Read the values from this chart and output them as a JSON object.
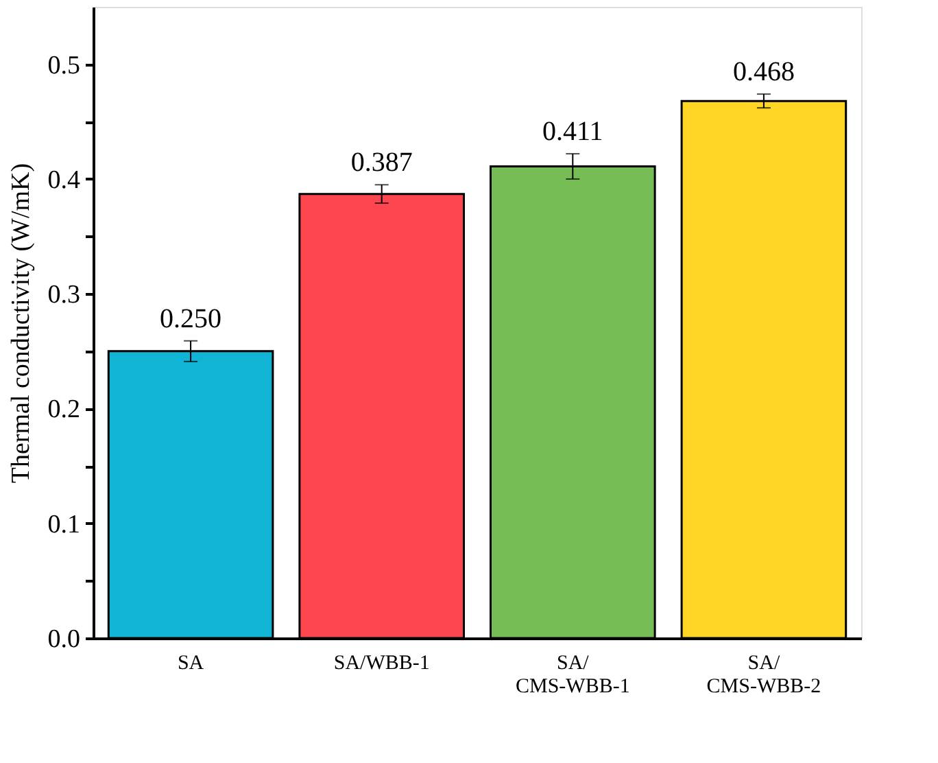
{
  "chart_data": {
    "type": "bar",
    "ylabel": "Thermal conductivity (W/mK)",
    "categories": [
      "SA",
      "SA/WBB-1",
      "SA/\nCMS-WBB-1",
      "SA/\nCMS-WBB-2"
    ],
    "values": [
      0.25,
      0.387,
      0.411,
      0.468
    ],
    "colors": [
      "#12b4d6",
      "#fd4650",
      "#76bd55",
      "#fed425"
    ],
    "errors": [
      0.009,
      0.008,
      0.011,
      0.006
    ],
    "value_labels": [
      "0.250",
      "0.387",
      "0.411",
      "0.468"
    ],
    "ylim": [
      0,
      0.55
    ],
    "yticks": [
      {
        "value": 0,
        "label": "0.0"
      },
      {
        "value": 0.05,
        "label": null
      },
      {
        "value": 0.1,
        "label": "0.1"
      },
      {
        "value": 0.15,
        "label": null
      },
      {
        "value": 0.2,
        "label": "0.2"
      },
      {
        "value": 0.25,
        "label": null
      },
      {
        "value": 0.3,
        "label": "0.3"
      },
      {
        "value": 0.35,
        "label": null
      },
      {
        "value": 0.4,
        "label": "0.4"
      },
      {
        "value": 0.45,
        "label": null
      },
      {
        "value": 0.5,
        "label": "0.5"
      }
    ],
    "grid": false
  }
}
